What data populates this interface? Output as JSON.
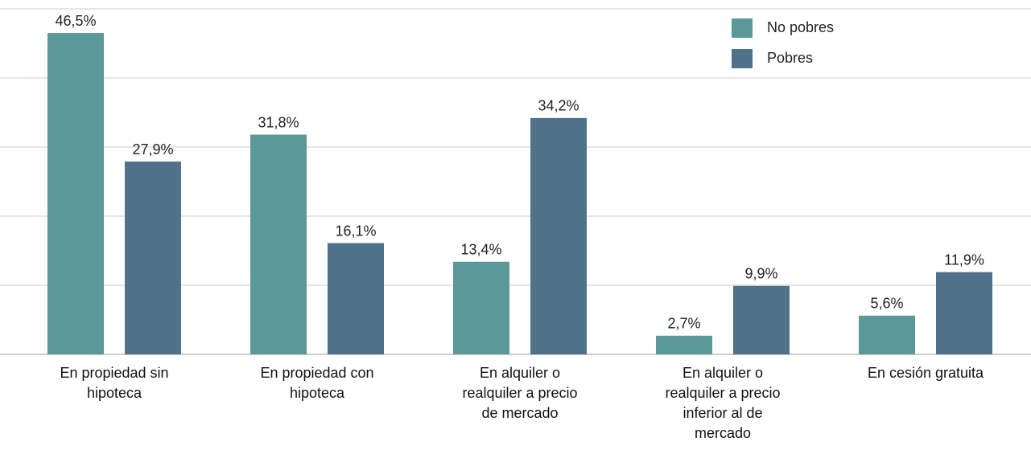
{
  "chart_data": {
    "type": "bar",
    "categories": [
      "En propiedad sin hipoteca",
      "En propiedad con hipoteca",
      "En alquiler o realquiler a precio de mercado",
      "En alquiler o realquiler a precio inferior al de mercado",
      "En cesión gratuita"
    ],
    "series": [
      {
        "name": "No pobres",
        "color": "#5b9898",
        "values": [
          46.5,
          31.8,
          13.4,
          2.7,
          5.6
        ],
        "value_labels": [
          "46,5%",
          "31,8%",
          "13,4%",
          "2,7%",
          "5,6%"
        ]
      },
      {
        "name": "Pobres",
        "color": "#4f7189",
        "values": [
          27.9,
          16.1,
          34.2,
          9.9,
          11.9
        ],
        "value_labels": [
          "27,9%",
          "16,1%",
          "34,2%",
          "9,9%",
          "11,9%"
        ]
      }
    ],
    "ylim": [
      0,
      50
    ],
    "yticks": [
      0,
      10,
      20,
      30,
      40,
      50
    ],
    "grid": true,
    "legend": "top-right"
  }
}
